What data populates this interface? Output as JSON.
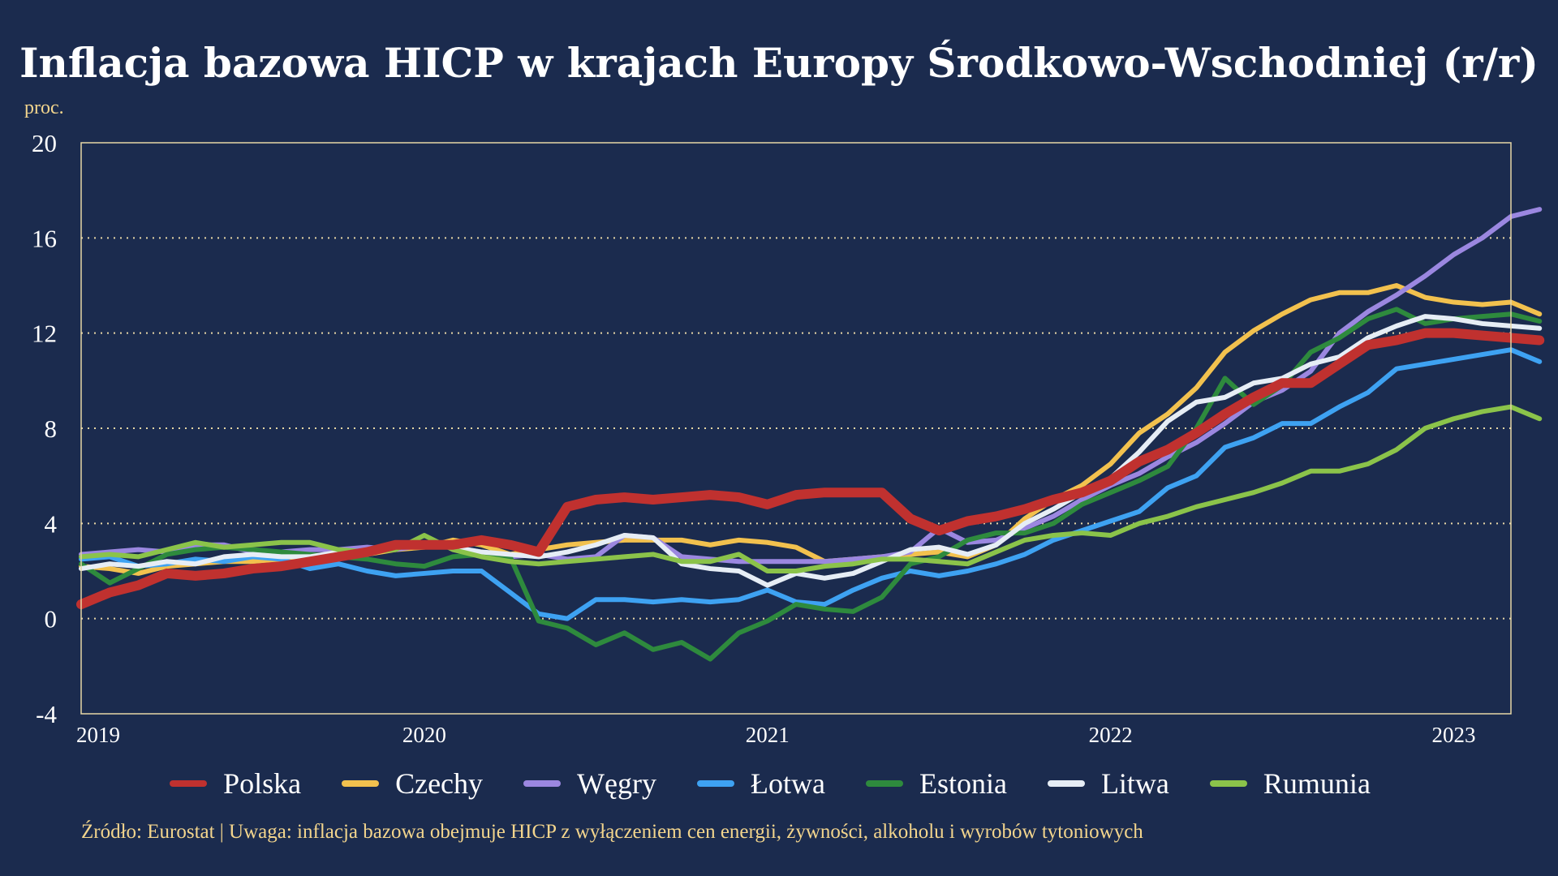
{
  "title": "Inflacja bazowa HICP w krajach Europy Środkowo-Wschodniej (r/r)",
  "unit_label": "proc.",
  "footer": "Źródło: Eurostat  |  Uwaga: inflacja bazowa obejmuje HICP z wyłączeniem cen energii, żywności, alkoholu i wyrobów tytoniowych",
  "chart_data": {
    "type": "line",
    "ylim": [
      -4,
      20
    ],
    "yticks": [
      -4,
      0,
      4,
      8,
      12,
      16,
      20
    ],
    "ylabel": "proc.",
    "xlim": [
      0,
      50
    ],
    "x_ticks": [
      {
        "label": "2019",
        "month": 0
      },
      {
        "label": "2020",
        "month": 12
      },
      {
        "label": "2021",
        "month": 24
      },
      {
        "label": "2022",
        "month": 36
      },
      {
        "label": "2023",
        "month": 48
      }
    ],
    "grid": "horizontal dotted",
    "legend": "bottom",
    "series": [
      {
        "name": "Polska",
        "color": "#c0312f",
        "values": [
          0.6,
          1.1,
          1.4,
          1.9,
          1.8,
          1.9,
          2.1,
          2.2,
          2.4,
          2.6,
          2.8,
          3.1,
          3.1,
          3.1,
          3.3,
          3.1,
          2.8,
          4.7,
          5.0,
          5.1,
          5.0,
          5.1,
          5.2,
          5.1,
          4.8,
          5.2,
          5.3,
          5.3,
          5.3,
          4.2,
          3.7,
          4.1,
          4.3,
          4.6,
          5.0,
          5.3,
          5.8,
          6.6,
          7.1,
          7.8,
          8.6,
          9.3,
          9.9,
          9.9,
          10.7,
          11.5,
          11.7,
          12.0,
          12.0,
          11.9,
          11.8,
          11.7
        ]
      },
      {
        "name": "Czechy",
        "color": "#f2c14e",
        "values": [
          2.2,
          2.1,
          1.9,
          2.2,
          2.3,
          2.4,
          2.4,
          2.5,
          2.6,
          2.6,
          2.7,
          2.9,
          3.0,
          3.3,
          3.1,
          2.7,
          2.9,
          3.1,
          3.2,
          3.3,
          3.3,
          3.3,
          3.1,
          3.3,
          3.2,
          3.0,
          2.4,
          2.5,
          2.6,
          2.7,
          2.8,
          2.6,
          3.1,
          4.2,
          5.0,
          5.6,
          6.5,
          7.8,
          8.6,
          9.7,
          11.2,
          12.1,
          12.8,
          13.4,
          13.7,
          13.7,
          14.0,
          13.5,
          13.3,
          13.2,
          13.3,
          12.8
        ]
      },
      {
        "name": "Węgry",
        "color": "#9b87e0",
        "values": [
          2.7,
          2.8,
          2.9,
          2.8,
          3.1,
          3.1,
          2.8,
          2.8,
          2.9,
          2.9,
          3.0,
          2.9,
          3.1,
          3.0,
          2.8,
          2.6,
          2.7,
          2.5,
          2.6,
          3.5,
          3.4,
          2.6,
          2.5,
          2.4,
          2.4,
          2.4,
          2.4,
          2.5,
          2.6,
          2.8,
          3.8,
          3.2,
          3.3,
          3.8,
          4.3,
          5.0,
          5.6,
          6.1,
          6.8,
          7.4,
          8.2,
          9.1,
          9.6,
          10.4,
          12.0,
          12.9,
          13.6,
          14.4,
          15.3,
          16.0,
          16.9,
          17.2
        ]
      },
      {
        "name": "Łotwa",
        "color": "#3ea2f2",
        "values": [
          2.5,
          2.6,
          2.2,
          2.3,
          2.5,
          2.4,
          2.6,
          2.5,
          2.1,
          2.3,
          2.0,
          1.8,
          1.9,
          2.0,
          2.0,
          1.1,
          0.2,
          0.0,
          0.8,
          0.8,
          0.7,
          0.8,
          0.7,
          0.8,
          1.2,
          0.7,
          0.6,
          1.2,
          1.7,
          2.0,
          1.8,
          2.0,
          2.3,
          2.7,
          3.3,
          3.7,
          4.1,
          4.5,
          5.5,
          6.0,
          7.2,
          7.6,
          8.2,
          8.2,
          8.9,
          9.5,
          10.5,
          10.7,
          10.9,
          11.1,
          11.3,
          10.8
        ]
      },
      {
        "name": "Estonia",
        "color": "#2e8a3d",
        "values": [
          2.3,
          1.5,
          2.1,
          2.7,
          2.9,
          3.0,
          2.9,
          2.8,
          2.7,
          2.6,
          2.5,
          2.3,
          2.2,
          2.6,
          2.7,
          2.6,
          -0.1,
          -0.4,
          -1.1,
          -0.6,
          -1.3,
          -1.0,
          -1.7,
          -0.6,
          -0.1,
          0.6,
          0.4,
          0.3,
          0.9,
          2.3,
          2.6,
          3.3,
          3.6,
          3.6,
          4.0,
          4.8,
          5.3,
          5.8,
          6.4,
          8.0,
          10.1,
          9.0,
          9.8,
          11.2,
          11.8,
          12.6,
          13.0,
          12.4,
          12.6,
          12.7,
          12.8,
          12.5
        ]
      },
      {
        "name": "Litwa",
        "color": "#e6edf5",
        "values": [
          2.1,
          2.3,
          2.2,
          2.4,
          2.3,
          2.6,
          2.7,
          2.6,
          2.6,
          2.8,
          2.8,
          3.1,
          3.1,
          3.0,
          2.8,
          2.7,
          2.6,
          2.8,
          3.1,
          3.5,
          3.4,
          2.3,
          2.1,
          2.0,
          1.4,
          1.9,
          1.7,
          1.9,
          2.4,
          2.9,
          3.0,
          2.7,
          3.1,
          4.0,
          4.6,
          5.3,
          5.9,
          7.0,
          8.3,
          9.1,
          9.3,
          9.9,
          10.1,
          10.7,
          11.0,
          11.8,
          12.3,
          12.7,
          12.6,
          12.4,
          12.3,
          12.2
        ]
      },
      {
        "name": "Rumunia",
        "color": "#8bc34a",
        "values": [
          2.6,
          2.7,
          2.6,
          2.9,
          3.2,
          3.0,
          3.1,
          3.2,
          3.2,
          2.9,
          2.8,
          2.9,
          3.5,
          2.9,
          2.6,
          2.4,
          2.3,
          2.4,
          2.5,
          2.6,
          2.7,
          2.4,
          2.4,
          2.7,
          2.0,
          2.0,
          2.2,
          2.3,
          2.5,
          2.5,
          2.4,
          2.3,
          2.8,
          3.3,
          3.5,
          3.6,
          3.5,
          4.0,
          4.3,
          4.7,
          5.0,
          5.3,
          5.7,
          6.2,
          6.2,
          6.5,
          7.1,
          8.0,
          8.4,
          8.7,
          8.9,
          8.4
        ]
      }
    ]
  }
}
